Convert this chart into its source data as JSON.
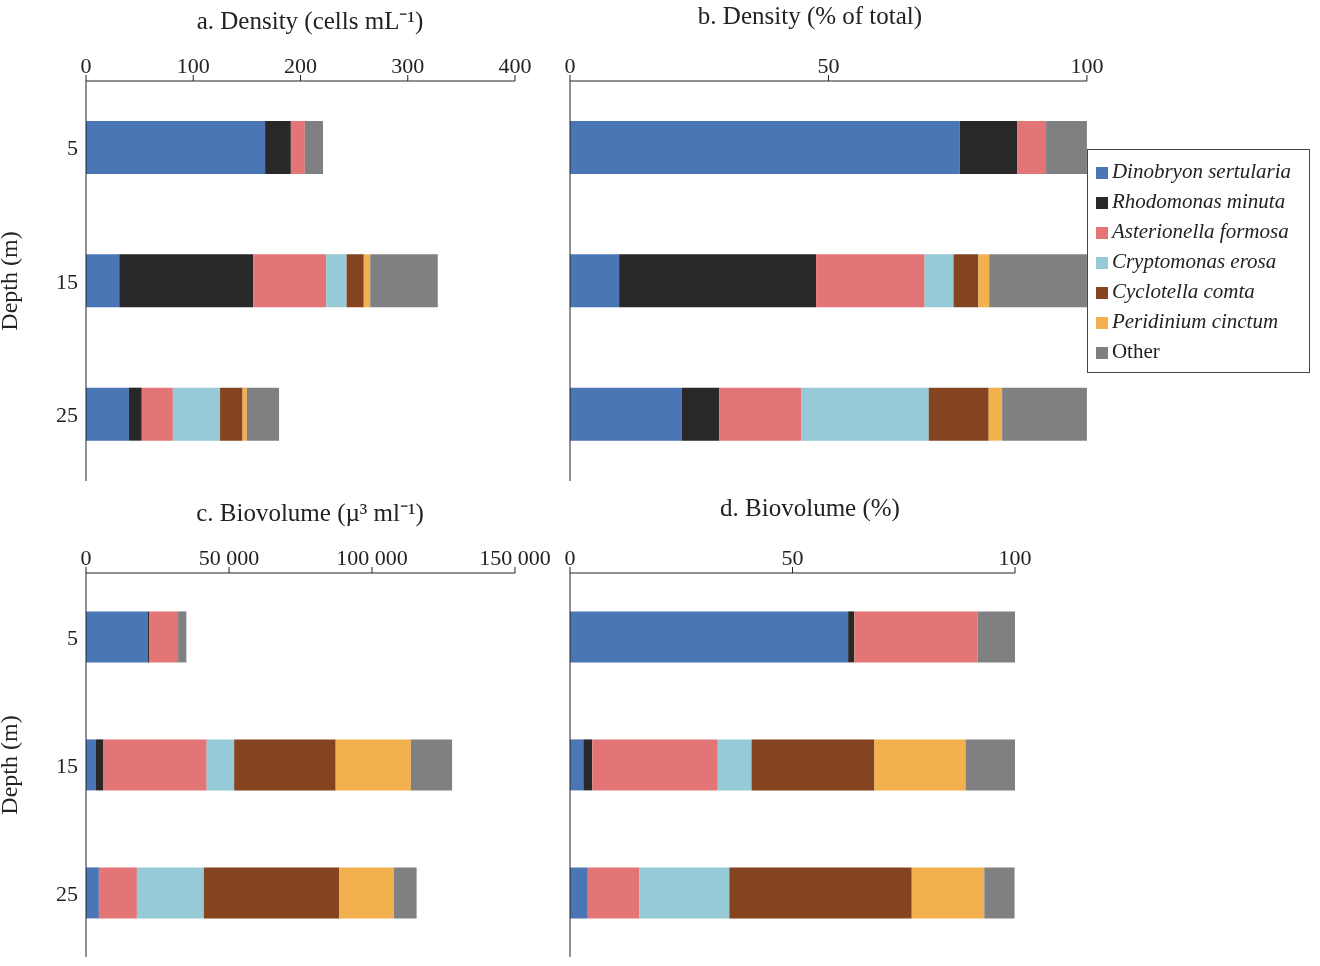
{
  "chart_data": [
    {
      "type": "bar",
      "title": "a. Density (cells mL⁻¹)",
      "ylabel": "Depth (m)",
      "orientation": "horizontal",
      "stacked": true,
      "categories": [
        "5",
        "15",
        "25"
      ],
      "xlim": [
        0,
        400
      ],
      "xticks": [
        0,
        100,
        200,
        300,
        400
      ],
      "series": [
        {
          "color": "#4a76b5",
          "values": [
            167,
            31,
            40
          ]
        },
        {
          "color": "#2a2729",
          "values": [
            24,
            125,
            12
          ]
        },
        {
          "color": "#e37576",
          "values": [
            13,
            68,
            29
          ]
        },
        {
          "color": "#95cad6",
          "values": [
            0,
            19,
            44
          ]
        },
        {
          "color": "#84441f",
          "values": [
            0,
            16,
            21
          ]
        },
        {
          "color": "#f2b04f",
          "values": [
            0,
            6,
            4
          ]
        },
        {
          "color": "#808082",
          "values": [
            17,
            63,
            30
          ]
        }
      ]
    },
    {
      "type": "bar",
      "title": "b. Density (% of total)",
      "orientation": "horizontal",
      "stacked": true,
      "legend": "right",
      "categories": [
        "5",
        "15",
        "25"
      ],
      "xlim": [
        0,
        100
      ],
      "xticks": [
        0,
        50,
        100
      ],
      "tick_labels": "x",
      "series": [
        {
          "name": "Dinobryon sertularia",
          "color": "#4a76b5",
          "values": [
            75.4,
            9.5,
            21.6
          ]
        },
        {
          "name": "Rhodomonas minuta",
          "color": "#2a2729",
          "values": [
            11.1,
            38.1,
            7.3
          ]
        },
        {
          "name": "Asterionella formosa",
          "color": "#e37576",
          "values": [
            5.6,
            21,
            15.8
          ]
        },
        {
          "name": "Cryptomonas erosa",
          "color": "#95cad6",
          "values": [
            0,
            5.6,
            24.7
          ]
        },
        {
          "name": "Cyclotella comta",
          "color": "#84441f",
          "values": [
            0,
            4.8,
            11.6
          ]
        },
        {
          "name": "Peridinium cinctum",
          "color": "#f2b04f",
          "values": [
            0,
            2.1,
            2.6
          ]
        },
        {
          "name": "Other",
          "color": "#808082",
          "values": [
            7.9,
            18.9,
            16.4
          ]
        }
      ]
    },
    {
      "type": "bar",
      "title": "c. Biovolume (µ³ ml⁻¹)",
      "ylabel": "Depth (m)",
      "orientation": "horizontal",
      "stacked": true,
      "categories": [
        "5",
        "15",
        "25"
      ],
      "xlim": [
        0,
        150000
      ],
      "xticks": [
        0,
        {
          "value": 50000,
          "label": "50 000"
        },
        {
          "value": 100000,
          "label": "100 000"
        },
        {
          "value": 150000,
          "label": "150 000"
        }
      ],
      "series": [
        {
          "color": "#4a76b5",
          "values": [
            21700,
            3500,
            4500
          ]
        },
        {
          "color": "#2a2729",
          "values": [
            500,
            2600,
            0
          ]
        },
        {
          "color": "#e37576",
          "values": [
            10000,
            36100,
            13300
          ]
        },
        {
          "color": "#95cad6",
          "values": [
            0,
            9600,
            23400
          ]
        },
        {
          "color": "#84441f",
          "values": [
            0,
            35500,
            47400
          ]
        },
        {
          "color": "#f2b04f",
          "values": [
            0,
            26300,
            19100
          ]
        },
        {
          "color": "#808082",
          "values": [
            2900,
            14400,
            7900
          ]
        }
      ]
    },
    {
      "type": "bar",
      "title": "d. Biovolume (%)",
      "orientation": "horizontal",
      "stacked": true,
      "categories": [
        "5",
        "15",
        "25"
      ],
      "xlim": [
        0,
        100
      ],
      "xticks": [
        0,
        50,
        100
      ],
      "tick_labels": "x",
      "series": [
        {
          "color": "#4a76b5",
          "values": [
            62.5,
            3,
            4
          ]
        },
        {
          "color": "#2a2729",
          "values": [
            1.4,
            2,
            0
          ]
        },
        {
          "color": "#e37576",
          "values": [
            27.7,
            28.2,
            11.6
          ]
        },
        {
          "color": "#95cad6",
          "values": [
            0,
            7.6,
            20.2
          ]
        },
        {
          "color": "#84441f",
          "values": [
            0,
            27.6,
            41
          ]
        },
        {
          "color": "#f2b04f",
          "values": [
            0,
            20.5,
            16.3
          ]
        },
        {
          "color": "#808082",
          "values": [
            8.4,
            11.1,
            6.8
          ]
        }
      ]
    }
  ]
}
